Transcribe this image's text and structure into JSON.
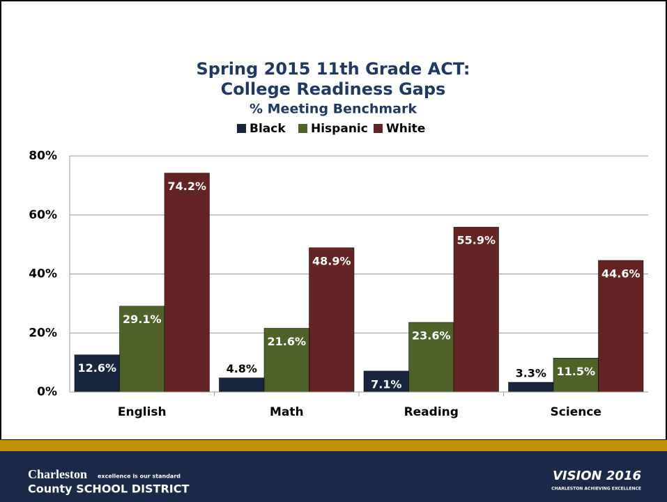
{
  "chart_data": {
    "type": "bar",
    "title": "Spring 2015 11th Grade ACT:",
    "subtitle": "College Readiness Gaps",
    "subtitle2": "% Meeting Benchmark",
    "categories": [
      "English",
      "Math",
      "Reading",
      "Science"
    ],
    "series": [
      {
        "name": "Black",
        "color": "#17253f",
        "values": [
          12.6,
          4.8,
          7.1,
          3.3
        ],
        "value_labels": [
          "12.6%",
          "4.8%",
          "7.1%",
          "3.3%"
        ]
      },
      {
        "name": "Hispanic",
        "color": "#4f6228",
        "values": [
          29.1,
          21.6,
          23.6,
          11.5
        ],
        "value_labels": [
          "29.1%",
          "21.6%",
          "23.6%",
          "11.5%"
        ]
      },
      {
        "name": "White",
        "color": "#632423",
        "values": [
          74.2,
          48.9,
          55.9,
          44.6
        ],
        "value_labels": [
          "74.2%",
          "48.9%",
          "55.9%",
          "44.6%"
        ]
      }
    ],
    "ylim": [
      0,
      80
    ],
    "yticks": [
      {
        "value": 0,
        "label": "0%"
      },
      {
        "value": 20,
        "label": "20%"
      },
      {
        "value": 40,
        "label": "40%"
      },
      {
        "value": 60,
        "label": "60%"
      },
      {
        "value": 80,
        "label": "80%"
      }
    ],
    "grid": true,
    "legend": "top"
  },
  "footer": {
    "district_line1": "Charleston",
    "tagline": "excellence is our standard",
    "district_line2": "County SCHOOL DISTRICT",
    "vision": "VISION 2016",
    "vision_tagline": "CHARLESTON ACHIEVING EXCELLENCE"
  }
}
